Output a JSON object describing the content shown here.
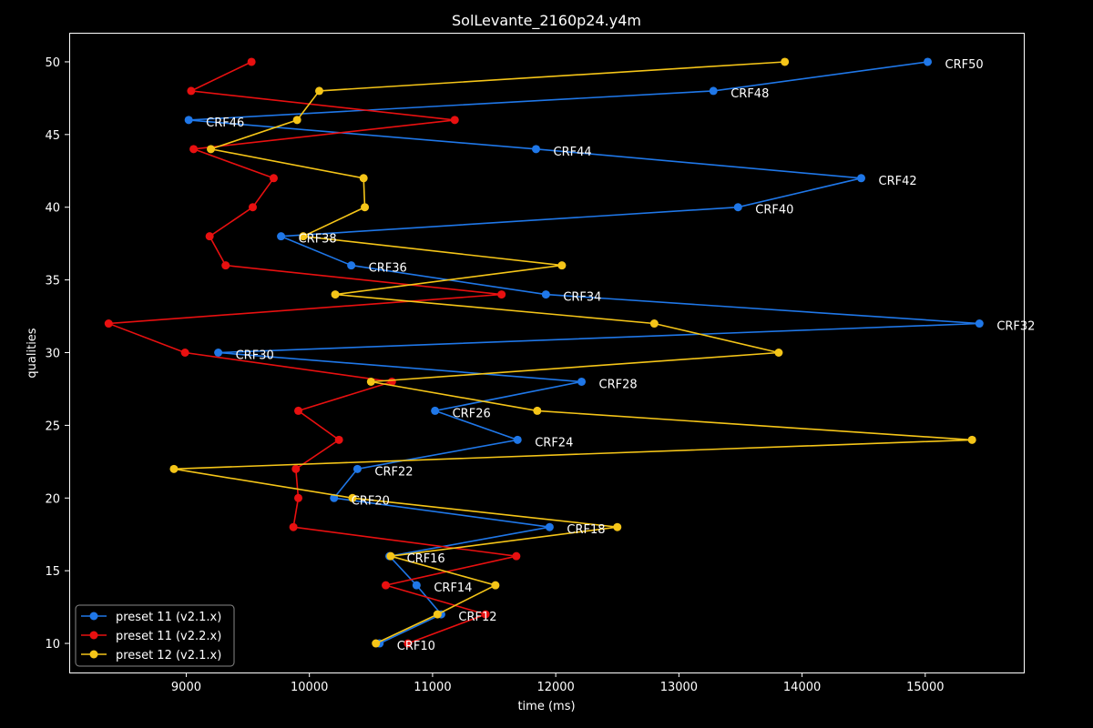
{
  "chart_data": {
    "type": "line",
    "title": "SolLevante_2160p24.y4m",
    "xlabel": "time (ms)",
    "ylabel": "qualities",
    "xlim": [
      8050,
      15800
    ],
    "ylim": [
      8,
      52
    ],
    "xticks": [
      9000,
      10000,
      11000,
      12000,
      13000,
      14000,
      15000
    ],
    "yticks": [
      10,
      15,
      20,
      25,
      30,
      35,
      40,
      45,
      50
    ],
    "grid": false,
    "legend_position": "bottom-left",
    "series": [
      {
        "name": "preset 11 (v2.1.x)",
        "color": "#1f77e8",
        "points": [
          {
            "x": 10570,
            "y": 10,
            "label": "CRF10"
          },
          {
            "x": 11070,
            "y": 12,
            "label": "CRF12"
          },
          {
            "x": 10870,
            "y": 14,
            "label": "CRF14"
          },
          {
            "x": 10650,
            "y": 16,
            "label": "CRF16"
          },
          {
            "x": 11950,
            "y": 18,
            "label": "CRF18"
          },
          {
            "x": 10200,
            "y": 20,
            "label": "CRF20"
          },
          {
            "x": 10390,
            "y": 22,
            "label": "CRF22"
          },
          {
            "x": 11690,
            "y": 24,
            "label": "CRF24"
          },
          {
            "x": 11020,
            "y": 26,
            "label": "CRF26"
          },
          {
            "x": 12210,
            "y": 28,
            "label": "CRF28"
          },
          {
            "x": 9260,
            "y": 30,
            "label": "CRF30"
          },
          {
            "x": 15440,
            "y": 32,
            "label": "CRF32"
          },
          {
            "x": 11920,
            "y": 34,
            "label": "CRF34"
          },
          {
            "x": 10340,
            "y": 36,
            "label": "CRF36"
          },
          {
            "x": 9770,
            "y": 38,
            "label": "CRF38"
          },
          {
            "x": 13480,
            "y": 40,
            "label": "CRF40"
          },
          {
            "x": 14480,
            "y": 42,
            "label": "CRF42"
          },
          {
            "x": 11840,
            "y": 44,
            "label": "CRF44"
          },
          {
            "x": 9020,
            "y": 46,
            "label": "CRF46"
          },
          {
            "x": 13280,
            "y": 48,
            "label": "CRF48"
          },
          {
            "x": 15020,
            "y": 50,
            "label": "CRF50"
          }
        ]
      },
      {
        "name": "preset 11 (v2.2.x)",
        "color": "#e81010",
        "points": [
          {
            "x": 10800,
            "y": 10
          },
          {
            "x": 11430,
            "y": 12
          },
          {
            "x": 10620,
            "y": 14
          },
          {
            "x": 11680,
            "y": 16
          },
          {
            "x": 9870,
            "y": 18
          },
          {
            "x": 9910,
            "y": 20
          },
          {
            "x": 9890,
            "y": 22
          },
          {
            "x": 10240,
            "y": 24
          },
          {
            "x": 9910,
            "y": 26
          },
          {
            "x": 10670,
            "y": 28
          },
          {
            "x": 8990,
            "y": 30
          },
          {
            "x": 8370,
            "y": 32
          },
          {
            "x": 11560,
            "y": 34
          },
          {
            "x": 9320,
            "y": 36
          },
          {
            "x": 9190,
            "y": 38
          },
          {
            "x": 9540,
            "y": 40
          },
          {
            "x": 9710,
            "y": 42
          },
          {
            "x": 9060,
            "y": 44
          },
          {
            "x": 11180,
            "y": 46
          },
          {
            "x": 9040,
            "y": 48
          },
          {
            "x": 9530,
            "y": 50
          }
        ]
      },
      {
        "name": "preset 12 (v2.1.x)",
        "color": "#f5c518",
        "points": [
          {
            "x": 10540,
            "y": 10
          },
          {
            "x": 11040,
            "y": 12
          },
          {
            "x": 11510,
            "y": 14
          },
          {
            "x": 10660,
            "y": 16
          },
          {
            "x": 12500,
            "y": 18
          },
          {
            "x": 10350,
            "y": 20
          },
          {
            "x": 8900,
            "y": 22
          },
          {
            "x": 15380,
            "y": 24
          },
          {
            "x": 11850,
            "y": 26
          },
          {
            "x": 10500,
            "y": 28
          },
          {
            "x": 13810,
            "y": 30
          },
          {
            "x": 12800,
            "y": 32
          },
          {
            "x": 10210,
            "y": 34
          },
          {
            "x": 12050,
            "y": 36
          },
          {
            "x": 9950,
            "y": 38
          },
          {
            "x": 10450,
            "y": 40
          },
          {
            "x": 10440,
            "y": 42
          },
          {
            "x": 9200,
            "y": 44
          },
          {
            "x": 9900,
            "y": 46
          },
          {
            "x": 10080,
            "y": 48
          },
          {
            "x": 13860,
            "y": 50
          }
        ]
      }
    ]
  }
}
